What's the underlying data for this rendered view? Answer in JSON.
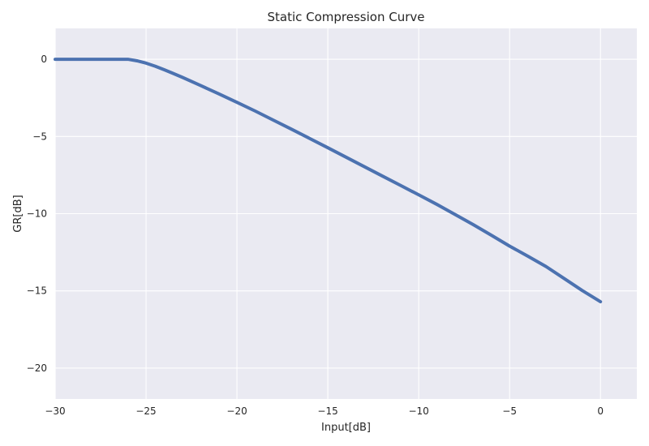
{
  "chart_data": {
    "type": "line",
    "title": "Static Compression Curve",
    "xlabel": "Input[dB]",
    "ylabel": "GR[dB]",
    "xlim": [
      -30,
      2
    ],
    "ylim": [
      -22,
      2
    ],
    "grid": true,
    "x_ticks": [
      -30,
      -25,
      -20,
      -15,
      -10,
      -5,
      0
    ],
    "y_ticks": [
      0,
      -5,
      -10,
      -15,
      -20
    ],
    "x_tick_labels": [
      "−30",
      "−25",
      "−20",
      "−15",
      "−10",
      "−5",
      "0"
    ],
    "y_tick_labels": [
      "0",
      "−5",
      "−10",
      "−15",
      "−20"
    ],
    "series": [
      {
        "color": "#4c72b0",
        "x": [
          -30,
          -28,
          -26,
          -25.5,
          -25,
          -24.5,
          -24,
          -23.5,
          -23,
          -22,
          -21,
          -20,
          -19,
          -18,
          -17,
          -16,
          -15,
          -14,
          -13,
          -12,
          -11,
          -10,
          -9,
          -8,
          -7,
          -6,
          -5,
          -4,
          -3,
          -2,
          -1,
          0
        ],
        "y": [
          0,
          0,
          0,
          -0.1,
          -0.25,
          -0.45,
          -0.68,
          -0.92,
          -1.17,
          -1.7,
          -2.24,
          -2.79,
          -3.35,
          -3.94,
          -4.53,
          -5.13,
          -5.73,
          -6.34,
          -6.95,
          -7.56,
          -8.17,
          -8.78,
          -9.4,
          -10.05,
          -10.71,
          -11.4,
          -12.1,
          -12.75,
          -13.42,
          -14.2,
          -14.98,
          -15.7
        ]
      }
    ]
  }
}
